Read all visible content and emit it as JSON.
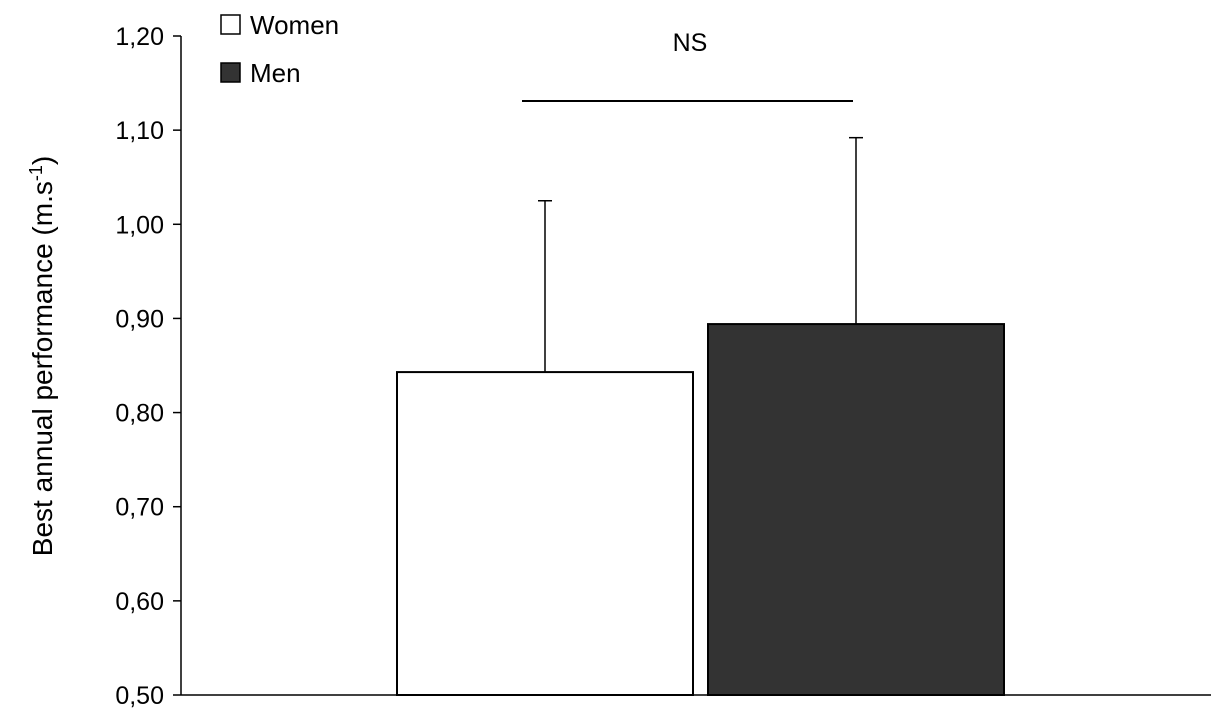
{
  "chart_data": {
    "type": "bar",
    "title": "",
    "xlabel": "",
    "ylabel": "Best annual performance (m.s",
    "ylabel_sup": "-1",
    "ylabel_close": ")",
    "ylim": [
      0.5,
      1.2
    ],
    "yticks": [
      "0,50",
      "0,60",
      "0,70",
      "0,80",
      "0,90",
      "1,00",
      "1,10",
      "1,20"
    ],
    "ytick_values": [
      0.5,
      0.6,
      0.7,
      0.8,
      0.9,
      1.0,
      1.1,
      1.2
    ],
    "grid": false,
    "legend_position": "top-left",
    "series": [
      {
        "name": "Women",
        "value": 0.843,
        "error": 0.182,
        "color": "#ffffff"
      },
      {
        "name": "Men",
        "value": 0.894,
        "error": 0.198,
        "color": "#333333"
      }
    ],
    "annotation": {
      "text": "NS",
      "type": "significance-bracket"
    }
  }
}
